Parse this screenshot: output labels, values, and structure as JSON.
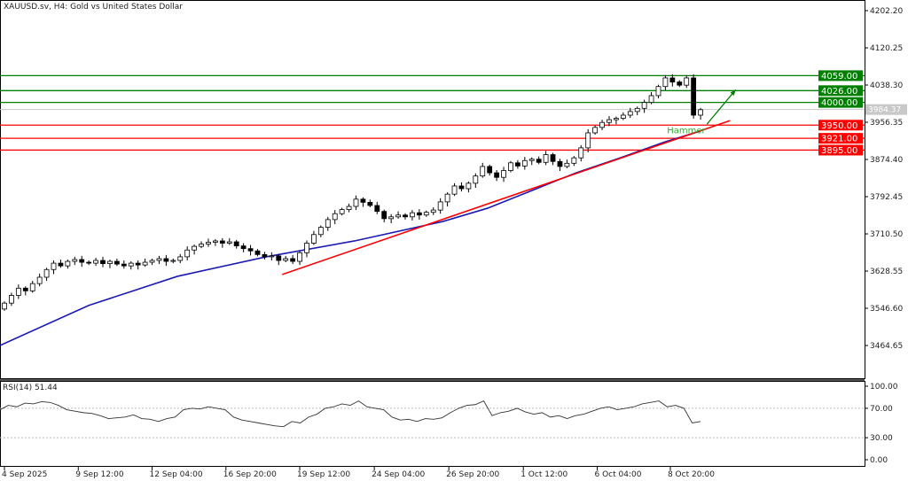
{
  "header": {
    "title": "XAUUSD.sv, H4:  Gold vs United States Dollar"
  },
  "colors": {
    "support": "#ff0000",
    "resistance": "#008000",
    "ma": "#1a1ab4",
    "trend": "#ff0000",
    "arrow": "#008000",
    "current": "#c8c8c8"
  },
  "chart_data": {
    "type": "candlestick",
    "symbol": "XAUUSD.sv",
    "timeframe": "H4",
    "ylim": [
      3430,
      4230
    ],
    "price_ticks": [
      "4202.20",
      "4120.25",
      "4038.30",
      "3956.35",
      "3874.40",
      "3792.45",
      "3710.50",
      "3628.55",
      "3546.60",
      "3464.65"
    ],
    "time_ticks": [
      {
        "i": 0,
        "label": "4 Sep 2025"
      },
      {
        "i": 10.5,
        "label": "9 Sep 12:00"
      },
      {
        "i": 21,
        "label": "12 Sep 04:00"
      },
      {
        "i": 31.5,
        "label": "16 Sep 20:00"
      },
      {
        "i": 42,
        "label": "19 Sep 12:00"
      },
      {
        "i": 52.6,
        "label": "24 Sep 04:00"
      },
      {
        "i": 63.2,
        "label": "26 Sep 20:00"
      },
      {
        "i": 73.8,
        "label": "1 Oct 12:00"
      },
      {
        "i": 84.3,
        "label": "6 Oct 04:00"
      },
      {
        "i": 94.7,
        "label": "8 Oct 20:00"
      }
    ],
    "open_first": 3545,
    "closes": [
      3558,
      3575,
      3591,
      3585,
      3601,
      3615,
      3632,
      3646,
      3640,
      3650,
      3654,
      3648,
      3646,
      3652,
      3645,
      3650,
      3644,
      3640,
      3646,
      3642,
      3648,
      3652,
      3656,
      3650,
      3652,
      3660,
      3675,
      3683,
      3688,
      3692,
      3695,
      3690,
      3693,
      3684,
      3678,
      3673,
      3665,
      3660,
      3662,
      3652,
      3656,
      3650,
      3669,
      3690,
      3709,
      3725,
      3742,
      3755,
      3764,
      3771,
      3787,
      3780,
      3773,
      3760,
      3744,
      3748,
      3752,
      3748,
      3757,
      3752,
      3758,
      3763,
      3781,
      3798,
      3816,
      3810,
      3822,
      3838,
      3859,
      3845,
      3835,
      3850,
      3867,
      3860,
      3872,
      3875,
      3868,
      3885,
      3870,
      3859,
      3866,
      3878,
      3900,
      3933,
      3945,
      3956,
      3962,
      3965,
      3972,
      3980,
      3987,
      4000,
      4015,
      4035,
      4054,
      4045,
      4038,
      4054,
      3972,
      3984
    ],
    "moving_average": [
      [
        -0.6,
        3465
      ],
      [
        12,
        3553
      ],
      [
        24.6,
        3617
      ],
      [
        37.2,
        3660
      ],
      [
        49.8,
        3695
      ],
      [
        62.4,
        3738
      ],
      [
        68.7,
        3767
      ],
      [
        75,
        3806
      ],
      [
        81.3,
        3845
      ],
      [
        87.6,
        3878
      ],
      [
        93.9,
        3913
      ],
      [
        99,
        3937
      ]
    ],
    "trendline": [
      [
        39.5,
        3621
      ],
      [
        103.2,
        3960
      ]
    ],
    "arrow": [
      [
        99.9,
        3952
      ],
      [
        104,
        4028
      ]
    ],
    "annotation": {
      "text": "Hammer",
      "i": 96.5,
      "price": 3938
    },
    "levels": [
      {
        "price": 4059.0,
        "label": "4059.00",
        "kind": "resistance"
      },
      {
        "price": 4026.0,
        "label": "4026.00",
        "kind": "resistance"
      },
      {
        "price": 4000.0,
        "label": "4000.00",
        "kind": "resistance"
      },
      {
        "price": 3950.0,
        "label": "3950.00",
        "kind": "support"
      },
      {
        "price": 3921.0,
        "label": "3921.00",
        "kind": "support"
      },
      {
        "price": 3895.0,
        "label": "3895.00",
        "kind": "support"
      }
    ],
    "current_price": {
      "price": 3984.37,
      "label": "3984.37"
    },
    "rsi": {
      "label": "RSI(14) 51.44",
      "ticks": [
        "100.00",
        "70.00",
        "30.00",
        "0.00"
      ],
      "levels": [
        70,
        30
      ],
      "values": [
        68,
        74,
        72,
        77,
        76,
        79,
        78,
        74,
        68,
        66,
        64,
        63,
        60,
        56,
        57,
        58,
        61,
        56,
        55,
        52,
        56,
        58,
        68,
        70,
        69,
        72,
        70,
        68,
        58,
        54,
        52,
        50,
        48,
        46,
        45,
        52,
        50,
        58,
        62,
        70,
        72,
        76,
        74,
        80,
        72,
        70,
        68,
        58,
        54,
        55,
        52,
        56,
        55,
        57,
        64,
        70,
        74,
        75,
        80,
        60,
        64,
        66,
        70,
        65,
        62,
        64,
        58,
        60,
        56,
        60,
        62,
        66,
        70,
        72,
        68,
        70,
        72,
        76,
        78,
        80,
        72,
        74,
        70,
        50,
        52
      ]
    }
  }
}
